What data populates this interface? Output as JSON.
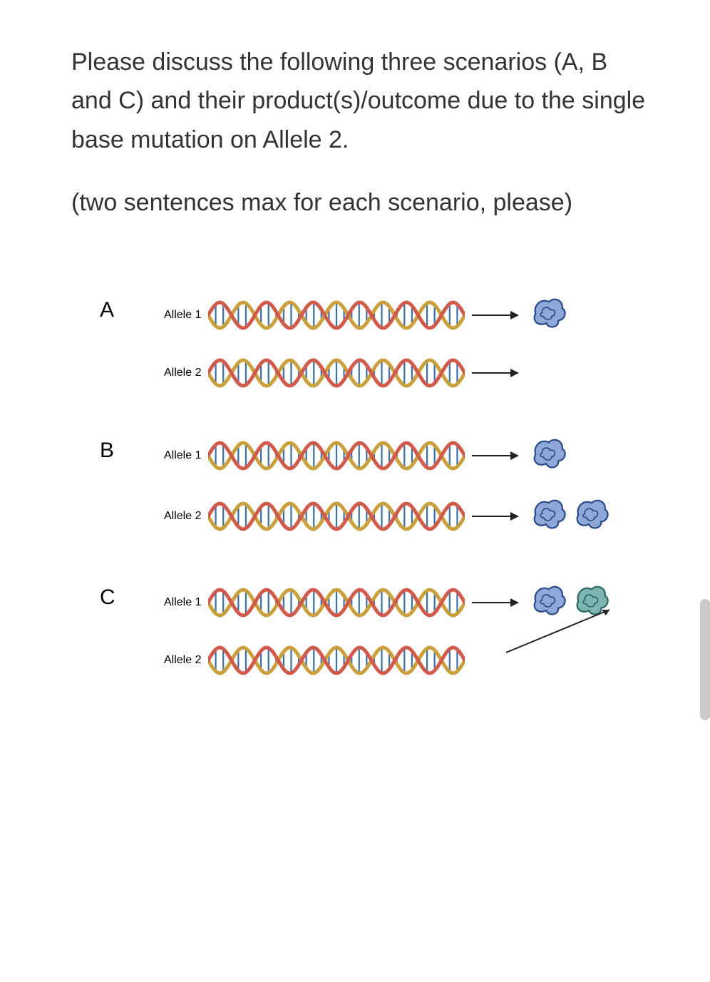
{
  "question": "Please discuss the following three scenarios (A, B and C) and their product(s)/outcome due to the single base mutation on Allele 2.",
  "instruction": "(two sentences max for each scenario, please)",
  "dna_colors": {
    "strand1": "#c9a03b",
    "strand2": "#d15a4a",
    "rungs": "#3a6fa8",
    "star": "#000000"
  },
  "protein_colors": {
    "normal_fill": "#8fa8d8",
    "normal_stroke": "#2a4a8a",
    "mutant_fill": "#7db5b0",
    "mutant_stroke": "#2a6a62"
  },
  "scenarios": [
    {
      "letter": "A",
      "alleles": [
        {
          "label": "Allele 1",
          "has_mutation": false,
          "arrow": true,
          "products": [
            "normal"
          ]
        },
        {
          "label": "Allele 2",
          "has_mutation": true,
          "arrow": true,
          "products": []
        }
      ]
    },
    {
      "letter": "B",
      "alleles": [
        {
          "label": "Allele 1",
          "has_mutation": false,
          "arrow": true,
          "products": [
            "normal"
          ]
        },
        {
          "label": "Allele 2",
          "has_mutation": true,
          "arrow": true,
          "products": [
            "normal",
            "normal"
          ]
        }
      ]
    },
    {
      "letter": "C",
      "alleles": [
        {
          "label": "Allele 1",
          "has_mutation": false,
          "arrow": true,
          "products": [
            "normal",
            "mutant"
          ],
          "converging": true
        },
        {
          "label": "Allele 2",
          "has_mutation": true,
          "arrow": false,
          "products": []
        }
      ]
    }
  ]
}
